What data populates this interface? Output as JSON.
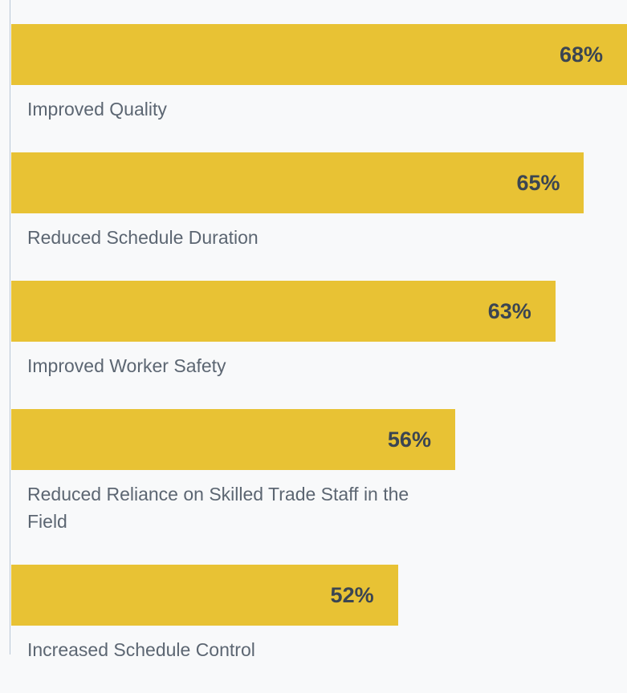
{
  "chart_data": {
    "type": "bar",
    "orientation": "horizontal",
    "categories": [
      "Improved Quality",
      "Reduced Schedule Duration",
      "Improved Worker Safety",
      "Reduced Reliance on Skilled Trade Staff in the Field",
      "Increased Schedule Control"
    ],
    "values": [
      68,
      65,
      63,
      56,
      52
    ],
    "value_labels": [
      "68%",
      "65%",
      "63%",
      "56%",
      "52%"
    ],
    "color": "#e8c234",
    "xlim": [
      25,
      68
    ]
  }
}
